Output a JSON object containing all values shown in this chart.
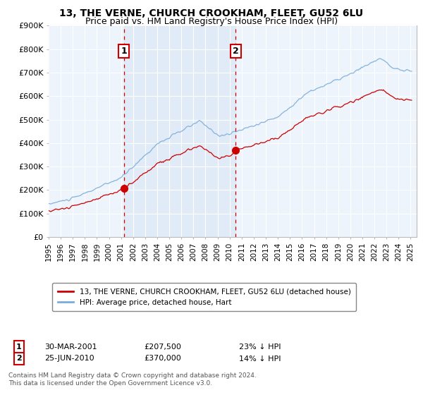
{
  "title_line1": "13, THE VERNE, CHURCH CROOKHAM, FLEET, GU52 6LU",
  "title_line2": "Price paid vs. HM Land Registry's House Price Index (HPI)",
  "legend_label_red": "13, THE VERNE, CHURCH CROOKHAM, FLEET, GU52 6LU (detached house)",
  "legend_label_blue": "HPI: Average price, detached house, Hart",
  "annotation1_label": "1",
  "annotation1_date": "30-MAR-2001",
  "annotation1_price": "£207,500",
  "annotation1_pct": "23% ↓ HPI",
  "annotation1_year": 2001.25,
  "annotation1_value": 207500,
  "annotation2_label": "2",
  "annotation2_date": "25-JUN-2010",
  "annotation2_price": "£370,000",
  "annotation2_pct": "14% ↓ HPI",
  "annotation2_year": 2010.5,
  "annotation2_value": 370000,
  "footer": "Contains HM Land Registry data © Crown copyright and database right 2024.\nThis data is licensed under the Open Government Licence v3.0.",
  "ylim": [
    0,
    900000
  ],
  "xlim_start": 1995.0,
  "xlim_end": 2025.5,
  "red_color": "#cc0000",
  "blue_color": "#7aacdb",
  "shade_color": "#ddeeff",
  "dashed_color": "#cc0000",
  "background_color": "#ffffff",
  "plot_bg_color": "#eef4fb"
}
